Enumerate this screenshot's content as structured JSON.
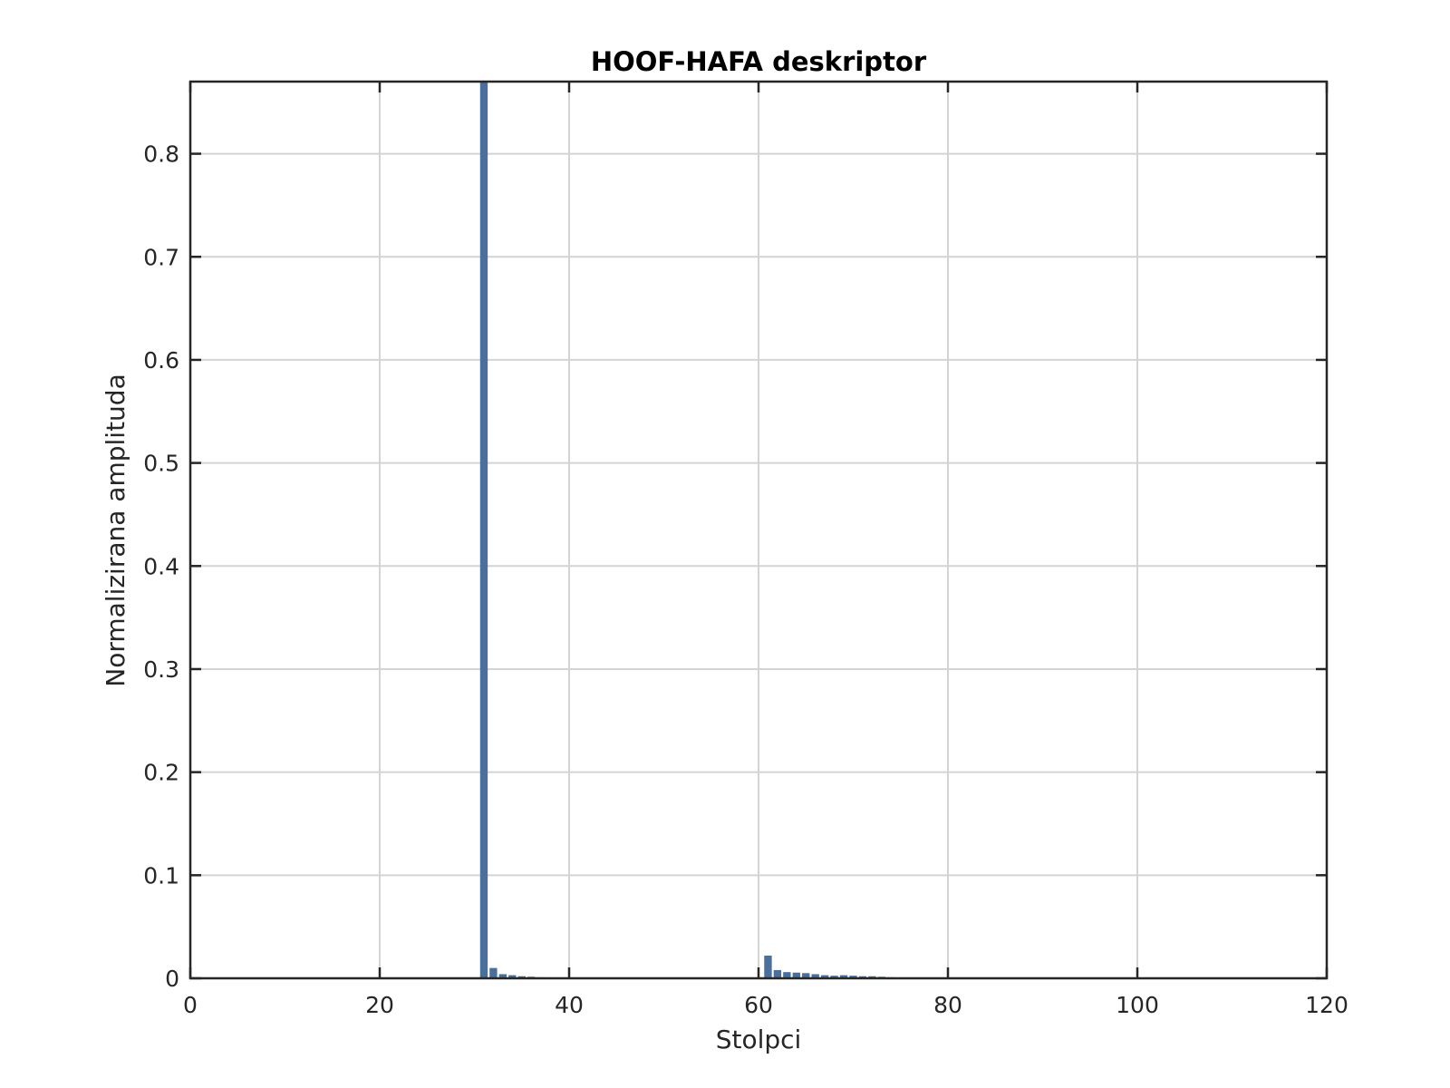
{
  "chart_data": {
    "type": "bar",
    "title": "HOOF-HAFA deskriptor",
    "xlabel": "Stolpci",
    "ylabel": "Normalizirana amplituda",
    "xlim": [
      0,
      120
    ],
    "ylim": [
      0,
      0.87
    ],
    "xticks": [
      0,
      20,
      40,
      60,
      80,
      100,
      120
    ],
    "xtick_labels": [
      "0",
      "20",
      "40",
      "60",
      "80",
      "100",
      "120"
    ],
    "yticks": [
      0,
      0.1,
      0.2,
      0.3,
      0.4,
      0.5,
      0.6,
      0.7,
      0.8
    ],
    "ytick_labels": [
      "0",
      "0.1",
      "0.2",
      "0.3",
      "0.4",
      "0.5",
      "0.6",
      "0.7",
      "0.8"
    ],
    "grid": true,
    "bar_color": "#4a6f9c",
    "x": [
      31,
      32,
      33,
      34,
      35,
      36,
      37,
      61,
      62,
      63,
      64,
      65,
      66,
      67,
      68,
      69,
      70,
      71,
      72,
      73,
      74
    ],
    "values": [
      0.87,
      0.01,
      0.004,
      0.003,
      0.002,
      0.0015,
      0.001,
      0.022,
      0.008,
      0.006,
      0.0055,
      0.005,
      0.004,
      0.003,
      0.0025,
      0.003,
      0.0025,
      0.002,
      0.002,
      0.0015,
      0.001
    ]
  }
}
